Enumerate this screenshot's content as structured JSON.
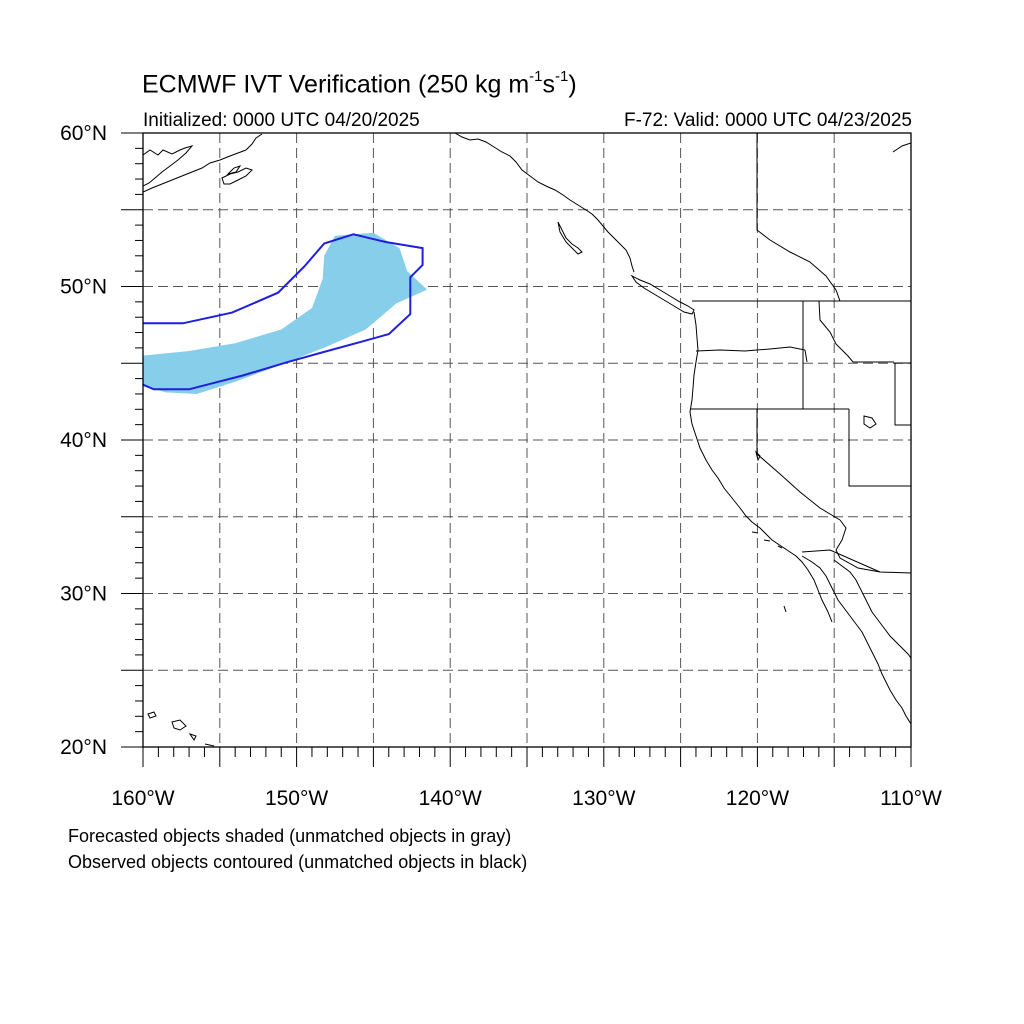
{
  "title": {
    "main": "ECMWF IVT Verification (250 kg m",
    "exp1": "-1",
    "mid": "s",
    "exp2": "-1",
    "end": ")"
  },
  "subtitle": {
    "initialized": "Initialized: 0000 UTC 04/20/2025",
    "valid": "F-72: Valid: 0000 UTC 04/23/2025"
  },
  "map": {
    "lon_range": [
      -160,
      -110
    ],
    "lat_range": [
      20,
      60
    ],
    "grid": "dashed, every 5 degrees",
    "lat_labels": [
      "60°N",
      "50°N",
      "40°N",
      "30°N",
      "20°N"
    ],
    "lon_labels": [
      "160°W",
      "150°W",
      "140°W",
      "130°W",
      "120°W",
      "110°W"
    ],
    "forecast_object": {
      "description": "forecasted IVT object (shaded)",
      "color": "#87ceeb",
      "outline_lonlat": [
        [
          -160,
          45.5
        ],
        [
          -157,
          45.8
        ],
        [
          -154,
          46.3
        ],
        [
          -151,
          47.2
        ],
        [
          -149,
          48.6
        ],
        [
          -148.3,
          50.5
        ],
        [
          -148.2,
          52.0
        ],
        [
          -147.5,
          53.3
        ],
        [
          -145.0,
          53.5
        ],
        [
          -143.3,
          52.5
        ],
        [
          -142.8,
          51.0
        ],
        [
          -141.5,
          49.8
        ],
        [
          -143.5,
          48.9
        ],
        [
          -145.5,
          47.2
        ],
        [
          -148.0,
          46.1
        ],
        [
          -151.0,
          44.9
        ],
        [
          -154.0,
          43.8
        ],
        [
          -156.5,
          43.0
        ],
        [
          -158.5,
          43.1
        ],
        [
          -160,
          43.5
        ]
      ]
    },
    "observed_object": {
      "description": "observed IVT object (contoured)",
      "color": "#1f1fe0",
      "outline_lonlat": [
        [
          -160,
          47.6
        ],
        [
          -157.4,
          47.6
        ],
        [
          -154.2,
          48.3
        ],
        [
          -151.2,
          49.6
        ],
        [
          -149.5,
          51.3
        ],
        [
          -148.2,
          52.8
        ],
        [
          -146.3,
          53.4
        ],
        [
          -144.2,
          52.9
        ],
        [
          -141.8,
          52.5
        ],
        [
          -141.8,
          51.4
        ],
        [
          -142.6,
          50.6
        ],
        [
          -142.6,
          48.2
        ],
        [
          -144.0,
          46.9
        ],
        [
          -145.8,
          46.4
        ],
        [
          -148.0,
          45.8
        ],
        [
          -150.5,
          45.1
        ],
        [
          -153.5,
          44.2
        ],
        [
          -157.0,
          43.3
        ],
        [
          -159.3,
          43.3
        ],
        [
          -160,
          43.6
        ]
      ]
    },
    "land_color": "#ffffff",
    "coast_color": "#000000"
  },
  "footnotes": [
    "Forecasted objects shaded (unmatched objects in gray)",
    "Observed objects contoured (unmatched objects in black)"
  ]
}
